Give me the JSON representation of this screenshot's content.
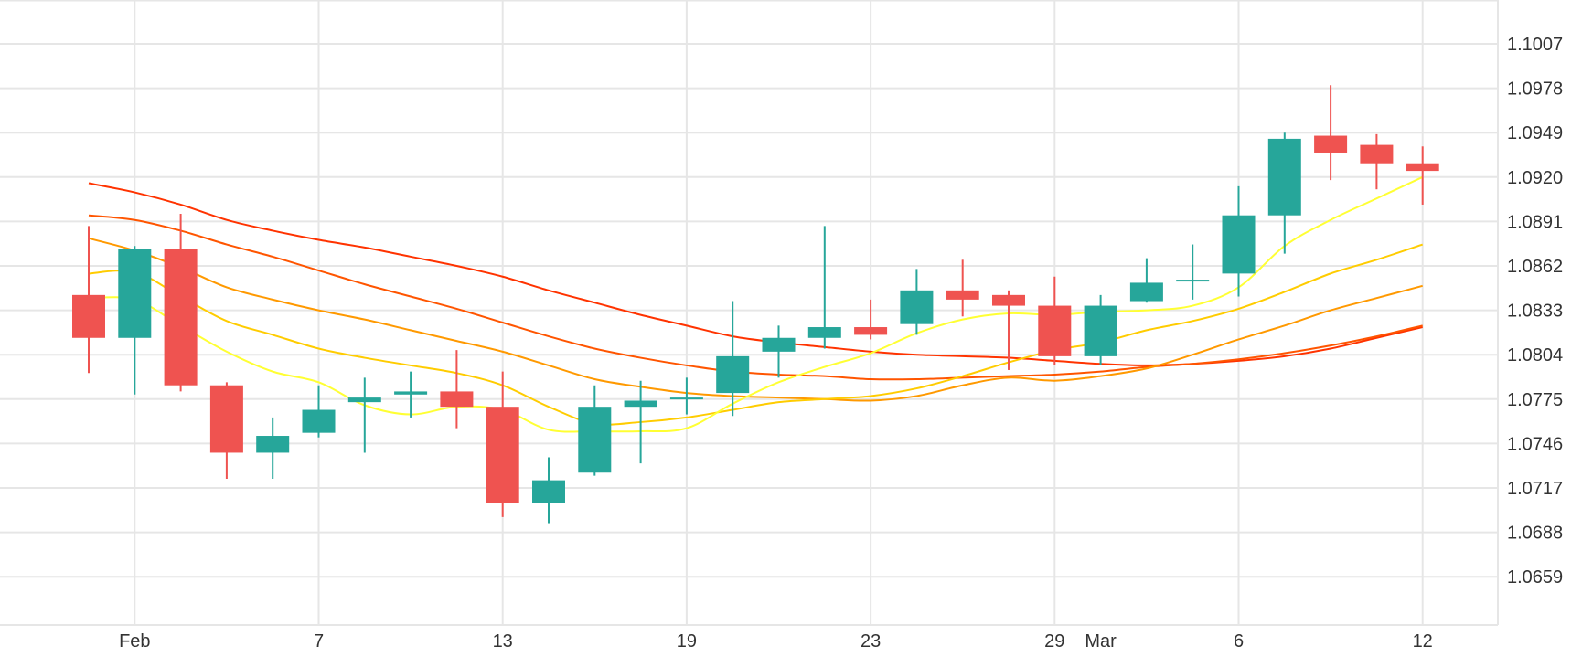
{
  "chart_data": {
    "type": "candlestick",
    "y_ticks": [
      "1.0659",
      "1.0688",
      "1.0717",
      "1.0746",
      "1.0775",
      "1.0804",
      "1.0833",
      "1.0862",
      "1.0891",
      "1.0920",
      "1.0949",
      "1.0978",
      "1.1007"
    ],
    "ylim": [
      1.063,
      1.1036
    ],
    "x_ticks": [
      {
        "label": "Feb",
        "index": 1
      },
      {
        "label": "7",
        "index": 5
      },
      {
        "label": "13",
        "index": 9
      },
      {
        "label": "19",
        "index": 13
      },
      {
        "label": "23",
        "index": 17
      },
      {
        "label": "29",
        "index": 21
      },
      {
        "label": "Mar",
        "index": 22
      },
      {
        "label": "6",
        "index": 25
      },
      {
        "label": "12",
        "index": 29
      }
    ],
    "colors": {
      "up": "#26a69a",
      "down": "#ef5350",
      "grid": "#e6e6e6"
    },
    "candles": [
      {
        "o": 1.0843,
        "h": 1.0888,
        "l": 1.0792,
        "c": 1.0815
      },
      {
        "o": 1.0815,
        "h": 1.0875,
        "l": 1.0778,
        "c": 1.0873
      },
      {
        "o": 1.0873,
        "h": 1.0896,
        "l": 1.078,
        "c": 1.0784
      },
      {
        "o": 1.0784,
        "h": 1.0786,
        "l": 1.0723,
        "c": 1.074
      },
      {
        "o": 1.074,
        "h": 1.0763,
        "l": 1.0723,
        "c": 1.0751
      },
      {
        "o": 1.0753,
        "h": 1.0784,
        "l": 1.075,
        "c": 1.0768
      },
      {
        "o": 1.0773,
        "h": 1.0789,
        "l": 1.074,
        "c": 1.0776
      },
      {
        "o": 1.0778,
        "h": 1.0793,
        "l": 1.0763,
        "c": 1.078
      },
      {
        "o": 1.078,
        "h": 1.0807,
        "l": 1.0756,
        "c": 1.077
      },
      {
        "o": 1.077,
        "h": 1.0793,
        "l": 1.0698,
        "c": 1.0707
      },
      {
        "o": 1.0707,
        "h": 1.0737,
        "l": 1.0694,
        "c": 1.0722
      },
      {
        "o": 1.0727,
        "h": 1.0784,
        "l": 1.0725,
        "c": 1.077
      },
      {
        "o": 1.077,
        "h": 1.0787,
        "l": 1.0733,
        "c": 1.0774
      },
      {
        "o": 1.0776,
        "h": 1.0789,
        "l": 1.0765,
        "c": 1.0776
      },
      {
        "o": 1.0779,
        "h": 1.0839,
        "l": 1.0764,
        "c": 1.0803
      },
      {
        "o": 1.0806,
        "h": 1.0823,
        "l": 1.0789,
        "c": 1.0815
      },
      {
        "o": 1.0815,
        "h": 1.0888,
        "l": 1.0808,
        "c": 1.0822
      },
      {
        "o": 1.0822,
        "h": 1.084,
        "l": 1.0814,
        "c": 1.0817
      },
      {
        "o": 1.0824,
        "h": 1.086,
        "l": 1.0817,
        "c": 1.0846
      },
      {
        "o": 1.0846,
        "h": 1.0866,
        "l": 1.0829,
        "c": 1.084
      },
      {
        "o": 1.0843,
        "h": 1.0846,
        "l": 1.0794,
        "c": 1.0836
      },
      {
        "o": 1.0836,
        "h": 1.0855,
        "l": 1.0797,
        "c": 1.0803
      },
      {
        "o": 1.0803,
        "h": 1.0843,
        "l": 1.0797,
        "c": 1.0836
      },
      {
        "o": 1.0839,
        "h": 1.0867,
        "l": 1.0838,
        "c": 1.0851
      },
      {
        "o": 1.0853,
        "h": 1.0876,
        "l": 1.084,
        "c": 1.0853
      },
      {
        "o": 1.0857,
        "h": 1.0914,
        "l": 1.0842,
        "c": 1.0895
      },
      {
        "o": 1.0895,
        "h": 1.0949,
        "l": 1.087,
        "c": 1.0945
      },
      {
        "o": 1.0947,
        "h": 1.098,
        "l": 1.0918,
        "c": 1.0936
      },
      {
        "o": 1.0941,
        "h": 1.0948,
        "l": 1.0912,
        "c": 1.0929
      },
      {
        "o": 1.0929,
        "h": 1.094,
        "l": 1.0902,
        "c": 1.0924
      }
    ],
    "bands": [
      {
        "color": "#ff3300",
        "points": [
          [
            0,
            1.0916
          ],
          [
            1,
            1.091
          ],
          [
            2,
            1.0902
          ],
          [
            3,
            1.0892
          ],
          [
            4,
            1.0885
          ],
          [
            5,
            1.0879
          ],
          [
            6,
            1.0874
          ],
          [
            7,
            1.0868
          ],
          [
            8,
            1.0862
          ],
          [
            9,
            1.0855
          ],
          [
            10,
            1.0846
          ],
          [
            11,
            1.0838
          ],
          [
            12,
            1.083
          ],
          [
            13,
            1.0823
          ],
          [
            14,
            1.0816
          ],
          [
            15,
            1.0812
          ],
          [
            16,
            1.0809
          ],
          [
            17,
            1.0806
          ],
          [
            18,
            1.0804
          ],
          [
            19,
            1.0803
          ],
          [
            20,
            1.0802
          ],
          [
            21,
            1.08
          ],
          [
            22,
            1.0798
          ],
          [
            23,
            1.0797
          ],
          [
            24,
            1.0798
          ],
          [
            25,
            1.08
          ],
          [
            26,
            1.0803
          ],
          [
            27,
            1.0808
          ],
          [
            28,
            1.0815
          ],
          [
            29,
            1.0822
          ]
        ]
      },
      {
        "color": "#ff5500",
        "points": [
          [
            0,
            1.0895
          ],
          [
            1,
            1.0892
          ],
          [
            2,
            1.0885
          ],
          [
            3,
            1.0876
          ],
          [
            4,
            1.0868
          ],
          [
            5,
            1.0859
          ],
          [
            6,
            1.085
          ],
          [
            7,
            1.0842
          ],
          [
            8,
            1.0834
          ],
          [
            9,
            1.0825
          ],
          [
            10,
            1.0816
          ],
          [
            11,
            1.0808
          ],
          [
            12,
            1.0802
          ],
          [
            13,
            1.0797
          ],
          [
            14,
            1.0793
          ],
          [
            15,
            1.0791
          ],
          [
            16,
            1.079
          ],
          [
            17,
            1.0788
          ],
          [
            18,
            1.0788
          ],
          [
            19,
            1.0789
          ],
          [
            20,
            1.079
          ],
          [
            21,
            1.0791
          ],
          [
            22,
            1.0793
          ],
          [
            23,
            1.0796
          ],
          [
            24,
            1.0798
          ],
          [
            25,
            1.0801
          ],
          [
            26,
            1.0805
          ],
          [
            27,
            1.081
          ],
          [
            28,
            1.0816
          ],
          [
            29,
            1.0823
          ]
        ]
      },
      {
        "color": "#ff9900",
        "points": [
          [
            0,
            1.088
          ],
          [
            1,
            1.0872
          ],
          [
            2,
            1.0861
          ],
          [
            3,
            1.0848
          ],
          [
            4,
            1.084
          ],
          [
            5,
            1.0833
          ],
          [
            6,
            1.0827
          ],
          [
            7,
            1.082
          ],
          [
            8,
            1.0813
          ],
          [
            9,
            1.0806
          ],
          [
            10,
            1.0797
          ],
          [
            11,
            1.0788
          ],
          [
            12,
            1.0783
          ],
          [
            13,
            1.0779
          ],
          [
            14,
            1.0777
          ],
          [
            15,
            1.0776
          ],
          [
            16,
            1.0775
          ],
          [
            17,
            1.0774
          ],
          [
            18,
            1.0777
          ],
          [
            19,
            1.0784
          ],
          [
            20,
            1.0789
          ],
          [
            21,
            1.0787
          ],
          [
            22,
            1.079
          ],
          [
            23,
            1.0795
          ],
          [
            24,
            1.0804
          ],
          [
            25,
            1.0814
          ],
          [
            26,
            1.0823
          ],
          [
            27,
            1.0833
          ],
          [
            28,
            1.0841
          ],
          [
            29,
            1.0849
          ]
        ]
      },
      {
        "color": "#ffcc00",
        "points": [
          [
            0,
            1.0857
          ],
          [
            1,
            1.0858
          ],
          [
            2,
            1.0842
          ],
          [
            3,
            1.0826
          ],
          [
            4,
            1.0817
          ],
          [
            5,
            1.0808
          ],
          [
            6,
            1.0802
          ],
          [
            7,
            1.0797
          ],
          [
            8,
            1.0792
          ],
          [
            9,
            1.0784
          ],
          [
            10,
            1.077
          ],
          [
            11,
            1.0759
          ],
          [
            12,
            1.076
          ],
          [
            13,
            1.0763
          ],
          [
            14,
            1.0768
          ],
          [
            15,
            1.0773
          ],
          [
            16,
            1.0775
          ],
          [
            17,
            1.0777
          ],
          [
            18,
            1.0782
          ],
          [
            19,
            1.079
          ],
          [
            20,
            1.0799
          ],
          [
            21,
            1.0807
          ],
          [
            22,
            1.0812
          ],
          [
            23,
            1.082
          ],
          [
            24,
            1.0826
          ],
          [
            25,
            1.0834
          ],
          [
            26,
            1.0845
          ],
          [
            27,
            1.0857
          ],
          [
            28,
            1.0866
          ],
          [
            29,
            1.0876
          ]
        ]
      },
      {
        "color": "#ffff33",
        "points": [
          [
            0,
            1.0841
          ],
          [
            1,
            1.084
          ],
          [
            2,
            1.0823
          ],
          [
            3,
            1.0806
          ],
          [
            4,
            1.0793
          ],
          [
            5,
            1.0786
          ],
          [
            6,
            1.0771
          ],
          [
            7,
            1.0765
          ],
          [
            8,
            1.077
          ],
          [
            9,
            1.0768
          ],
          [
            10,
            1.0755
          ],
          [
            11,
            1.0754
          ],
          [
            12,
            1.0754
          ],
          [
            13,
            1.0756
          ],
          [
            14,
            1.0772
          ],
          [
            15,
            1.0786
          ],
          [
            16,
            1.0796
          ],
          [
            17,
            1.0805
          ],
          [
            18,
            1.0818
          ],
          [
            19,
            1.0827
          ],
          [
            20,
            1.0831
          ],
          [
            21,
            1.083
          ],
          [
            22,
            1.0832
          ],
          [
            23,
            1.0833
          ],
          [
            24,
            1.0836
          ],
          [
            25,
            1.0848
          ],
          [
            26,
            1.0875
          ],
          [
            27,
            1.0892
          ],
          [
            28,
            1.0906
          ],
          [
            29,
            1.092
          ]
        ]
      }
    ]
  }
}
